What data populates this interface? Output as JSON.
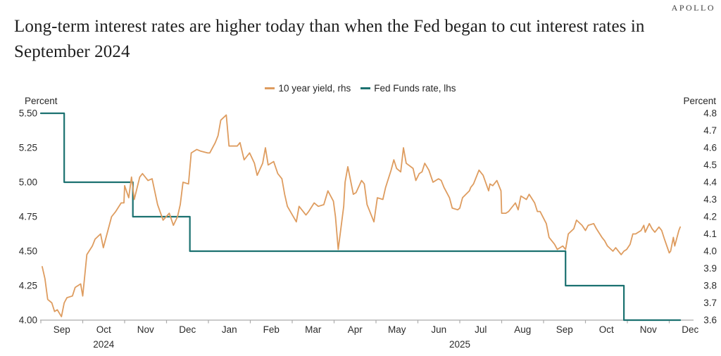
{
  "brand": "APOLLO",
  "title": "Long-term interest rates are higher today than when the Fed began to cut interest rates in September 2024",
  "legend": [
    {
      "label": "10 year yield, rhs",
      "color": "#DE9C5F"
    },
    {
      "label": "Fed Funds rate, lhs",
      "color": "#1B7170"
    }
  ],
  "chart_data": {
    "type": "line",
    "title": "Long-term interest rates are higher today than when the Fed began to cut interest rates in September 2024",
    "x_months": [
      "Sep",
      "Oct",
      "Nov",
      "Dec",
      "Jan",
      "Feb",
      "Mar",
      "Apr",
      "May",
      "Jun",
      "Jul",
      "Aug",
      "Sep",
      "Oct",
      "Nov",
      "Dec"
    ],
    "years": [
      {
        "label": "2024",
        "month_center": 1.5
      },
      {
        "label": "2025",
        "month_center": 10.0
      }
    ],
    "left_axis": {
      "label": "Percent",
      "min": 4.0,
      "max": 5.5,
      "ticks": [
        "5.50",
        "5.25",
        "5.00",
        "4.75",
        "4.50",
        "4.25",
        "4.00"
      ]
    },
    "right_axis": {
      "label": "Percent",
      "min": 3.6,
      "max": 4.8,
      "ticks": [
        "4.8",
        "4.7",
        "4.6",
        "4.5",
        "4.4",
        "4.3",
        "4.2",
        "4.1",
        "4.0",
        "3.9",
        "3.8",
        "3.7",
        "3.6"
      ]
    },
    "axis_color": "#ABABAB",
    "series": [
      {
        "name": "Fed Funds rate, lhs",
        "axis": "left",
        "color": "#1B7170",
        "width": 2.2,
        "steps": [
          {
            "from": "2024-09-01",
            "to": "2024-09-18",
            "rate": 5.5
          },
          {
            "from": "2024-09-18",
            "to": "2024-11-07",
            "rate": 5.0
          },
          {
            "from": "2024-11-07",
            "to": "2024-12-18",
            "rate": 4.75
          },
          {
            "from": "2024-12-18",
            "to": "2025-09-17",
            "rate": 4.5
          },
          {
            "from": "2025-09-17",
            "to": "2025-10-29",
            "rate": 4.25
          },
          {
            "from": "2025-10-29",
            "to": "2025-12-09",
            "rate": 4.0
          }
        ]
      },
      {
        "name": "10 year yield, rhs",
        "axis": "right",
        "color": "#DE9C5F",
        "width": 1.8,
        "points": [
          [
            "2024-09-02",
            3.91
          ],
          [
            "2024-09-04",
            3.84
          ],
          [
            "2024-09-06",
            3.72
          ],
          [
            "2024-09-09",
            3.7
          ],
          [
            "2024-09-11",
            3.65
          ],
          [
            "2024-09-13",
            3.66
          ],
          [
            "2024-09-16",
            3.62
          ],
          [
            "2024-09-18",
            3.7
          ],
          [
            "2024-09-20",
            3.73
          ],
          [
            "2024-09-24",
            3.74
          ],
          [
            "2024-09-26",
            3.79
          ],
          [
            "2024-09-30",
            3.81
          ],
          [
            "2024-10-01",
            3.74
          ],
          [
            "2024-10-04",
            3.98
          ],
          [
            "2024-10-08",
            4.03
          ],
          [
            "2024-10-10",
            4.07
          ],
          [
            "2024-10-14",
            4.1
          ],
          [
            "2024-10-16",
            4.02
          ],
          [
            "2024-10-18",
            4.08
          ],
          [
            "2024-10-22",
            4.2
          ],
          [
            "2024-10-25",
            4.23
          ],
          [
            "2024-10-29",
            4.28
          ],
          [
            "2024-10-31",
            4.28
          ],
          [
            "2024-11-01",
            4.38
          ],
          [
            "2024-11-04",
            4.31
          ],
          [
            "2024-11-06",
            4.43
          ],
          [
            "2024-11-08",
            4.3
          ],
          [
            "2024-11-12",
            4.43
          ],
          [
            "2024-11-14",
            4.45
          ],
          [
            "2024-11-18",
            4.41
          ],
          [
            "2024-11-21",
            4.42
          ],
          [
            "2024-11-25",
            4.27
          ],
          [
            "2024-11-29",
            4.18
          ],
          [
            "2024-12-03",
            4.22
          ],
          [
            "2024-12-06",
            4.15
          ],
          [
            "2024-12-09",
            4.2
          ],
          [
            "2024-12-11",
            4.27
          ],
          [
            "2024-12-13",
            4.4
          ],
          [
            "2024-12-17",
            4.39
          ],
          [
            "2024-12-19",
            4.57
          ],
          [
            "2024-12-23",
            4.59
          ],
          [
            "2024-12-26",
            4.58
          ],
          [
            "2024-12-31",
            4.57
          ],
          [
            "2025-01-02",
            4.57
          ],
          [
            "2025-01-06",
            4.63
          ],
          [
            "2025-01-08",
            4.67
          ],
          [
            "2025-01-10",
            4.76
          ],
          [
            "2025-01-14",
            4.79
          ],
          [
            "2025-01-16",
            4.61
          ],
          [
            "2025-01-22",
            4.61
          ],
          [
            "2025-01-24",
            4.63
          ],
          [
            "2025-01-27",
            4.53
          ],
          [
            "2025-01-29",
            4.55
          ],
          [
            "2025-01-31",
            4.57
          ],
          [
            "2025-02-04",
            4.51
          ],
          [
            "2025-02-06",
            4.44
          ],
          [
            "2025-02-10",
            4.51
          ],
          [
            "2025-02-12",
            4.6
          ],
          [
            "2025-02-14",
            4.5
          ],
          [
            "2025-02-18",
            4.52
          ],
          [
            "2025-02-21",
            4.45
          ],
          [
            "2025-02-24",
            4.42
          ],
          [
            "2025-02-26",
            4.33
          ],
          [
            "2025-02-28",
            4.26
          ],
          [
            "2025-03-04",
            4.17
          ],
          [
            "2025-03-06",
            4.26
          ],
          [
            "2025-03-11",
            4.21
          ],
          [
            "2025-03-13",
            4.23
          ],
          [
            "2025-03-17",
            4.28
          ],
          [
            "2025-03-20",
            4.26
          ],
          [
            "2025-03-24",
            4.27
          ],
          [
            "2025-03-27",
            4.35
          ],
          [
            "2025-03-31",
            4.29
          ],
          [
            "2025-04-02",
            4.2
          ],
          [
            "2025-04-04",
            4.01
          ],
          [
            "2025-04-08",
            4.26
          ],
          [
            "2025-04-09",
            4.4
          ],
          [
            "2025-04-11",
            4.49
          ],
          [
            "2025-04-15",
            4.33
          ],
          [
            "2025-04-17",
            4.34
          ],
          [
            "2025-04-21",
            4.41
          ],
          [
            "2025-04-23",
            4.39
          ],
          [
            "2025-04-25",
            4.27
          ],
          [
            "2025-04-30",
            4.17
          ],
          [
            "2025-05-02",
            4.31
          ],
          [
            "2025-05-06",
            4.3
          ],
          [
            "2025-05-08",
            4.37
          ],
          [
            "2025-05-12",
            4.47
          ],
          [
            "2025-05-14",
            4.53
          ],
          [
            "2025-05-16",
            4.48
          ],
          [
            "2025-05-19",
            4.46
          ],
          [
            "2025-05-21",
            4.6
          ],
          [
            "2025-05-23",
            4.51
          ],
          [
            "2025-05-28",
            4.48
          ],
          [
            "2025-05-30",
            4.41
          ],
          [
            "2025-06-02",
            4.45
          ],
          [
            "2025-06-04",
            4.46
          ],
          [
            "2025-06-06",
            4.51
          ],
          [
            "2025-06-09",
            4.47
          ],
          [
            "2025-06-12",
            4.4
          ],
          [
            "2025-06-16",
            4.42
          ],
          [
            "2025-06-18",
            4.41
          ],
          [
            "2025-06-20",
            4.37
          ],
          [
            "2025-06-24",
            4.31
          ],
          [
            "2025-06-26",
            4.25
          ],
          [
            "2025-06-30",
            4.24
          ],
          [
            "2025-07-01",
            4.25
          ],
          [
            "2025-07-03",
            4.31
          ],
          [
            "2025-07-08",
            4.35
          ],
          [
            "2025-07-09",
            4.37
          ],
          [
            "2025-07-11",
            4.39
          ],
          [
            "2025-07-15",
            4.47
          ],
          [
            "2025-07-18",
            4.44
          ],
          [
            "2025-07-22",
            4.35
          ],
          [
            "2025-07-23",
            4.39
          ],
          [
            "2025-07-25",
            4.38
          ],
          [
            "2025-07-28",
            4.41
          ],
          [
            "2025-07-31",
            4.35
          ],
          [
            "2025-08-01",
            4.22
          ],
          [
            "2025-08-04",
            4.22
          ],
          [
            "2025-08-06",
            4.23
          ],
          [
            "2025-08-08",
            4.25
          ],
          [
            "2025-08-11",
            4.28
          ],
          [
            "2025-08-13",
            4.24
          ],
          [
            "2025-08-15",
            4.32
          ],
          [
            "2025-08-19",
            4.3
          ],
          [
            "2025-08-21",
            4.33
          ],
          [
            "2025-08-25",
            4.28
          ],
          [
            "2025-08-27",
            4.23
          ],
          [
            "2025-08-29",
            4.23
          ],
          [
            "2025-09-03",
            4.16
          ],
          [
            "2025-09-05",
            4.08
          ],
          [
            "2025-09-09",
            4.04
          ],
          [
            "2025-09-11",
            4.01
          ],
          [
            "2025-09-15",
            4.03
          ],
          [
            "2025-09-17",
            4.01
          ],
          [
            "2025-09-19",
            4.1
          ],
          [
            "2025-09-23",
            4.13
          ],
          [
            "2025-09-25",
            4.18
          ],
          [
            "2025-09-29",
            4.15
          ],
          [
            "2025-10-01",
            4.12
          ],
          [
            "2025-10-03",
            4.15
          ],
          [
            "2025-10-07",
            4.16
          ],
          [
            "2025-10-09",
            4.13
          ],
          [
            "2025-10-13",
            4.08
          ],
          [
            "2025-10-15",
            4.06
          ],
          [
            "2025-10-17",
            4.03
          ],
          [
            "2025-10-21",
            4.0
          ],
          [
            "2025-10-23",
            4.02
          ],
          [
            "2025-10-27",
            3.98
          ],
          [
            "2025-10-29",
            4.0
          ],
          [
            "2025-10-31",
            4.01
          ],
          [
            "2025-11-03",
            4.04
          ],
          [
            "2025-11-05",
            4.1
          ],
          [
            "2025-11-07",
            4.1
          ],
          [
            "2025-11-11",
            4.12
          ],
          [
            "2025-11-13",
            4.15
          ],
          [
            "2025-11-14",
            4.11
          ],
          [
            "2025-11-17",
            4.16
          ],
          [
            "2025-11-19",
            4.13
          ],
          [
            "2025-11-21",
            4.11
          ],
          [
            "2025-11-24",
            4.14
          ],
          [
            "2025-11-26",
            4.12
          ],
          [
            "2025-11-28",
            4.07
          ],
          [
            "2025-12-01",
            3.99
          ],
          [
            "2025-12-02",
            4.0
          ],
          [
            "2025-12-03",
            4.04
          ],
          [
            "2025-12-04",
            4.08
          ],
          [
            "2025-12-05",
            4.03
          ],
          [
            "2025-12-08",
            4.12
          ],
          [
            "2025-12-09",
            4.14
          ]
        ]
      }
    ]
  }
}
